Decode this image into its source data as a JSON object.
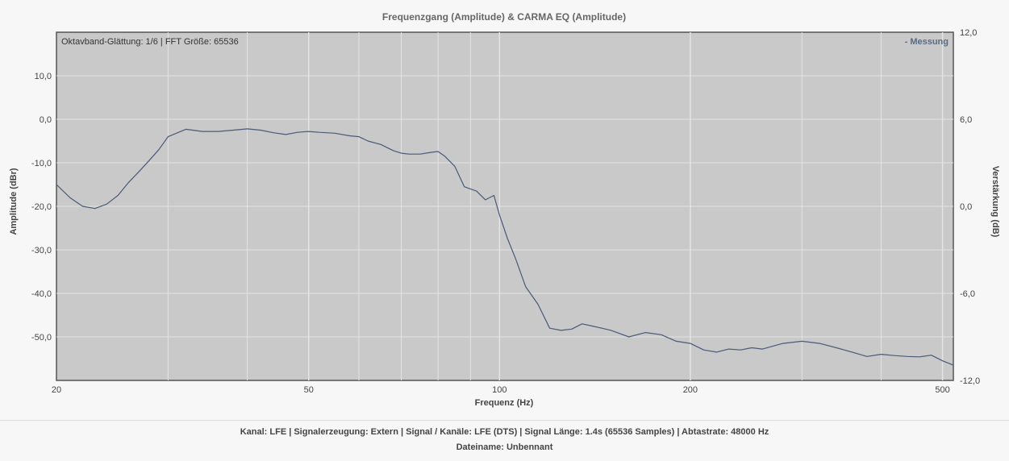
{
  "chart_data": {
    "type": "line",
    "title": "Frequenzgang (Amplitude) & CARMA EQ (Amplitude)",
    "info_text": "Oktavband-Glättung: 1/6 | FFT Größe: 65536",
    "xlabel": "Frequenz (Hz)",
    "ylabel": "Amplitude (dBr)",
    "y2label": "Verstärkung (dB)",
    "x_scale": "log",
    "xlim": [
      20,
      520
    ],
    "ylim": [
      -60,
      20
    ],
    "y2lim": [
      -12,
      12
    ],
    "x_ticks": [
      20,
      50,
      100,
      200,
      500
    ],
    "x_tick_labels": [
      "20",
      "50",
      "100",
      "200",
      "500"
    ],
    "y_ticks": [
      10,
      0,
      -10,
      -20,
      -30,
      -40,
      -50
    ],
    "y_tick_labels": [
      "10,0",
      "0,0",
      "-10,0",
      "-20,0",
      "-30,0",
      "-40,0",
      "-50,0"
    ],
    "y2_ticks": [
      12,
      6,
      0,
      -6,
      -12
    ],
    "y2_tick_labels": [
      "12,0",
      "6,0",
      "0,0",
      "-6,0",
      "-12,0"
    ],
    "grid": true,
    "legend_position": "top-right",
    "colors": {
      "plot_bg": "#c9c9c9",
      "line": "#4a5a78",
      "grid": "#e4e4e4",
      "legend": "#5a6b85"
    },
    "series": [
      {
        "name": "Messung",
        "x": [
          20,
          21,
          22,
          23,
          24,
          25,
          26,
          27,
          28,
          29,
          30,
          32,
          34,
          36,
          38,
          40,
          42,
          44,
          46,
          48,
          50,
          52,
          55,
          58,
          60,
          62,
          65,
          68,
          70,
          72,
          75,
          78,
          80,
          82,
          85,
          88,
          90,
          92,
          95,
          98,
          100,
          103,
          106,
          110,
          115,
          120,
          125,
          130,
          135,
          140,
          145,
          150,
          160,
          170,
          180,
          190,
          200,
          210,
          220,
          230,
          240,
          250,
          260,
          280,
          300,
          320,
          340,
          360,
          380,
          400,
          420,
          440,
          460,
          480,
          500,
          520
        ],
        "y": [
          -15,
          -18,
          -20,
          -20.5,
          -19.5,
          -17.5,
          -14.5,
          -12,
          -9.5,
          -7,
          -4,
          -2.3,
          -2.8,
          -2.8,
          -2.5,
          -2.2,
          -2.5,
          -3.1,
          -3.5,
          -3.0,
          -2.8,
          -3.0,
          -3.2,
          -3.8,
          -4.0,
          -5.0,
          -5.8,
          -7.2,
          -7.8,
          -8.0,
          -8.0,
          -7.6,
          -7.4,
          -8.5,
          -10.8,
          -15.5,
          -16.0,
          -16.5,
          -18.5,
          -17.5,
          -22.0,
          -27.5,
          -32.0,
          -38.5,
          -42.5,
          -48.0,
          -48.5,
          -48.2,
          -47.0,
          -47.5,
          -48.0,
          -48.5,
          -50.0,
          -49.0,
          -49.5,
          -51.0,
          -51.5,
          -53.0,
          -53.5,
          -52.8,
          -53.0,
          -52.5,
          -52.8,
          -51.5,
          -51.0,
          -51.5,
          -52.5,
          -53.5,
          -54.5,
          -54.0,
          -54.3,
          -54.5,
          -54.6,
          -54.2,
          -55.5,
          -56.5
        ]
      }
    ]
  },
  "footer": {
    "line1": "Kanal: LFE  |  Signalerzeugung: Extern   |  Signal / Kanäle: LFE (DTS)  |  Signal Länge: 1.4s (65536 Samples)  |  Abtastrate: 48000 Hz",
    "line2": "Dateiname: Unbennant"
  }
}
